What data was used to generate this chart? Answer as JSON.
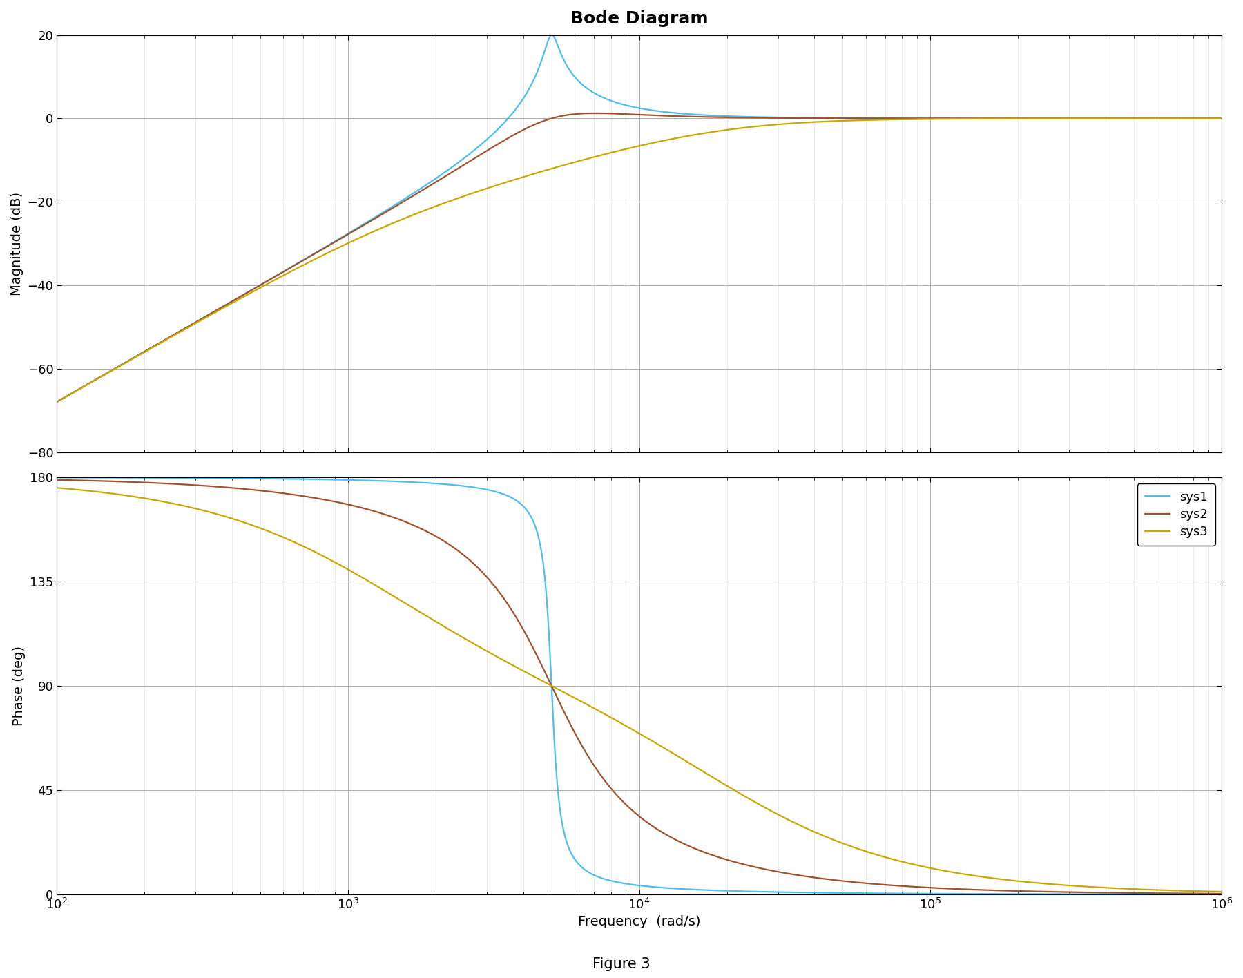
{
  "title": "Bode Diagram",
  "xlabel": "Frequency  (rad/s)",
  "ylabel_mag": "Magnitude (dB)",
  "ylabel_phase": "Phase (deg)",
  "figure_label": "Figure 3",
  "freq_range": [
    100,
    1000000
  ],
  "mag_ylim": [
    -80,
    20
  ],
  "phase_ylim": [
    0,
    180
  ],
  "mag_yticks": [
    -80,
    -60,
    -40,
    -20,
    0,
    20
  ],
  "phase_yticks": [
    0,
    45,
    90,
    135,
    180
  ],
  "colors": {
    "sys1": "#4DBEEE",
    "sys2": "#A0522D",
    "sys3": "#C8A800"
  },
  "legend_labels": [
    "sys1",
    "sys2",
    "sys3"
  ],
  "systems": {
    "sys1": {
      "wn": 5000,
      "zeta": 0.05
    },
    "sys2": {
      "wn": 5000,
      "zeta": 0.5
    },
    "sys3": {
      "wn": 5000,
      "zeta": 2.0
    }
  },
  "background_color": "#ffffff",
  "grid_major_color": "#b0b0b0",
  "grid_minor_color": "#d8d8d8",
  "title_fontsize": 18,
  "label_fontsize": 14,
  "tick_fontsize": 13,
  "legend_fontsize": 13,
  "figure_label_fontsize": 15,
  "line_width": 1.6
}
